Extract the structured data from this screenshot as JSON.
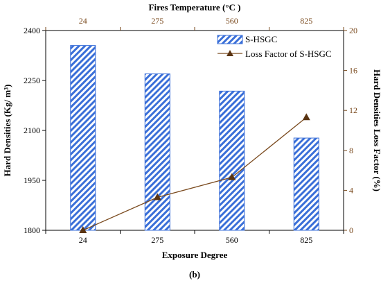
{
  "chart_data": {
    "type": "bar",
    "categories": [
      "24",
      "275",
      "560",
      "825"
    ],
    "xlabel": "Exposure Degree",
    "top_xlabel": "Fires Temperature (°C )",
    "top_categories": [
      "24",
      "275",
      "560",
      "825"
    ],
    "ylabel_left": "Hard Densities (Kg/ m³)",
    "ylabel_right": "Hard Densities Loss Factor (%)",
    "ylim_left": [
      1800,
      2400
    ],
    "yticks_left": [
      "1800",
      "1950",
      "2100",
      "2250",
      "2400"
    ],
    "ylim_right": [
      0,
      20
    ],
    "yticks_right": [
      "0",
      "4",
      "8",
      "12",
      "16",
      "20"
    ],
    "series": [
      {
        "name": "S-HSGC",
        "type": "bar",
        "axis": "left",
        "values": [
          2355,
          2270,
          2218,
          2077
        ]
      },
      {
        "name": "Loss Factor of S-HSGC",
        "type": "line",
        "axis": "right",
        "values": [
          0,
          3.3,
          5.3,
          11.3
        ]
      }
    ],
    "legend_position": "top-right",
    "grid": false,
    "caption": "(b)"
  },
  "colors": {
    "bar_stripe": "#3a6fd8",
    "line": "#7a4a1e",
    "right_axis": "#7a4a1e"
  }
}
